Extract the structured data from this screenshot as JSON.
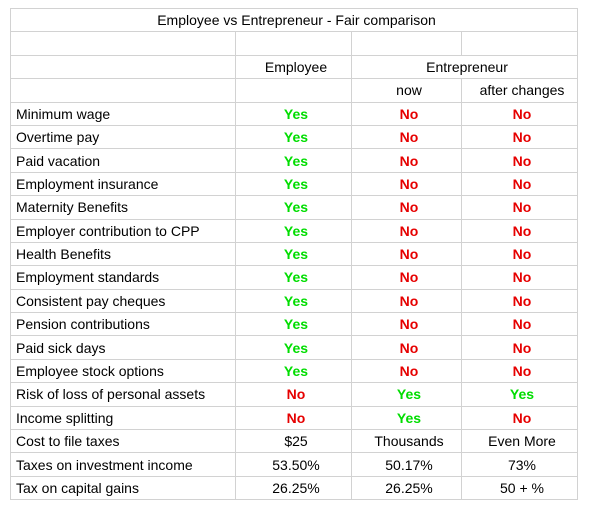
{
  "title": "Employee vs Entrepreneur - Fair comparison",
  "headers": {
    "employee": "Employee",
    "entrepreneur": "Entrepreneur",
    "now": "now",
    "after_changes": "after changes"
  },
  "colors": {
    "yes": "#00dd00",
    "no": "#e60000",
    "grid": "#d2d2d2"
  },
  "rows": [
    {
      "label": "Minimum wage",
      "employee": "Yes",
      "now": "No",
      "after": "No"
    },
    {
      "label": "Overtime pay",
      "employee": "Yes",
      "now": "No",
      "after": "No"
    },
    {
      "label": "Paid vacation",
      "employee": "Yes",
      "now": "No",
      "after": "No"
    },
    {
      "label": "Employment insurance",
      "employee": "Yes",
      "now": "No",
      "after": "No"
    },
    {
      "label": "Maternity Benefits",
      "employee": "Yes",
      "now": "No",
      "after": "No"
    },
    {
      "label": "Employer contribution to CPP",
      "employee": "Yes",
      "now": "No",
      "after": "No"
    },
    {
      "label": "Health Benefits",
      "employee": "Yes",
      "now": "No",
      "after": "No"
    },
    {
      "label": "Employment standards",
      "employee": "Yes",
      "now": "No",
      "after": "No"
    },
    {
      "label": "Consistent pay cheques",
      "employee": "Yes",
      "now": "No",
      "after": "No"
    },
    {
      "label": "Pension contributions",
      "employee": "Yes",
      "now": "No",
      "after": "No"
    },
    {
      "label": "Paid sick days",
      "employee": "Yes",
      "now": "No",
      "after": "No"
    },
    {
      "label": "Employee stock options",
      "employee": "Yes",
      "now": "No",
      "after": "No"
    },
    {
      "label": "Risk of loss of personal assets",
      "employee": "No",
      "now": "Yes",
      "after": "Yes"
    },
    {
      "label": "Income splitting",
      "employee": "No",
      "now": "Yes",
      "after": "No"
    },
    {
      "label": "Cost to file taxes",
      "employee": "$25",
      "now": "Thousands",
      "after": "Even More"
    },
    {
      "label": "Taxes on investment income",
      "employee": "53.50%",
      "now": "50.17%",
      "after": "73%"
    },
    {
      "label": "Tax on capital gains",
      "employee": "26.25%",
      "now": "26.25%",
      "after": "50 + %"
    }
  ]
}
